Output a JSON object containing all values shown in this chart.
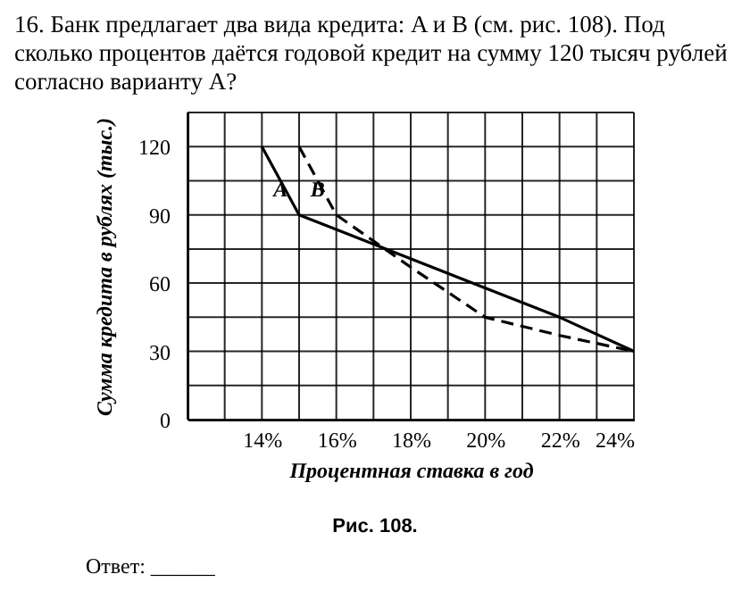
{
  "chart_data": {
    "type": "line",
    "title": "16. Банк предлагает два вида кредита: A и B (см. рис. 108). Под сколько процентов даётся годовой кредит на сумму 120 тысяч рублей согласно варианту A?",
    "xlabel": "Процентная ставка в год",
    "ylabel": "Сумма кредита в рублях (тыс.)",
    "series": [
      {
        "name": "A",
        "color": "#000000",
        "line_style": "solid",
        "x": [
          14,
          15,
          22,
          24
        ],
        "values": [
          120,
          90,
          45,
          30
        ]
      },
      {
        "name": "B",
        "color": "#000000",
        "line_style": "dashed",
        "x": [
          15,
          16,
          18,
          20,
          22,
          24
        ],
        "values": [
          120,
          90,
          67,
          45,
          37,
          30
        ]
      }
    ],
    "xlim": [
      12,
      24
    ],
    "xticks": [
      {
        "value": 12,
        "label": null
      },
      {
        "value": 13,
        "label": null
      },
      {
        "value": 14,
        "label": "14%"
      },
      {
        "value": 15,
        "label": null
      },
      {
        "value": 16,
        "label": "16%"
      },
      {
        "value": 17,
        "label": null
      },
      {
        "value": 18,
        "label": "18%"
      },
      {
        "value": 19,
        "label": null
      },
      {
        "value": 20,
        "label": "20%"
      },
      {
        "value": 21,
        "label": null
      },
      {
        "value": 22,
        "label": "22%"
      },
      {
        "value": 23,
        "label": null
      },
      {
        "value": 24,
        "label": "24%"
      }
    ],
    "ylim": [
      0,
      135
    ],
    "yticks": [
      0,
      {
        "value": 15,
        "label": null
      },
      30,
      {
        "value": 45,
        "label": null
      },
      60,
      {
        "value": 75,
        "label": null
      },
      90,
      {
        "value": 105,
        "label": null
      },
      120,
      {
        "value": 135,
        "label": null
      }
    ],
    "grid": true,
    "annotations": [
      "Рис. 108.",
      "Ответ: ______"
    ]
  }
}
